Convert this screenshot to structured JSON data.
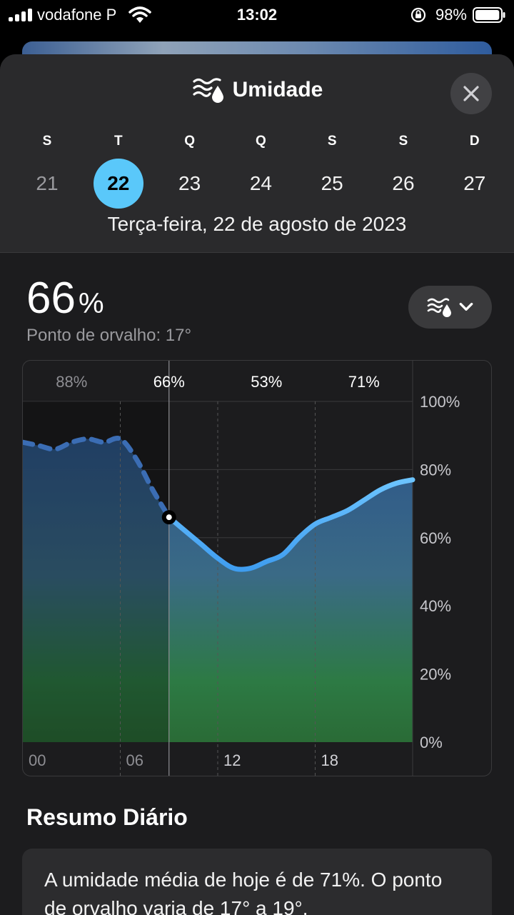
{
  "status_bar": {
    "carrier": "vodafone P",
    "time": "13:02",
    "battery": "98%",
    "battery_fraction": 0.98
  },
  "header": {
    "title": "Umidade",
    "icon": "humidity-icon",
    "close_icon": "close-icon"
  },
  "week": {
    "days": [
      {
        "weekday": "S",
        "date": "21"
      },
      {
        "weekday": "T",
        "date": "22"
      },
      {
        "weekday": "Q",
        "date": "23"
      },
      {
        "weekday": "Q",
        "date": "24"
      },
      {
        "weekday": "S",
        "date": "25"
      },
      {
        "weekday": "S",
        "date": "26"
      },
      {
        "weekday": "D",
        "date": "27"
      }
    ],
    "selected_index": 1,
    "full_date": "Terça-feira, 22 de agosto de 2023"
  },
  "current": {
    "value": "66",
    "unit": "%",
    "dew_point": "Ponto de orvalho: 17°"
  },
  "chart_data": {
    "type": "area",
    "x_ticks": [
      "00",
      "06",
      "12",
      "18"
    ],
    "y_ticks": [
      "100%",
      "80%",
      "60%",
      "40%",
      "20%",
      "0%"
    ],
    "ylim": [
      0,
      100
    ],
    "xlim": [
      0,
      24
    ],
    "top_labels": [
      {
        "hour": 3,
        "label": "88%"
      },
      {
        "hour": 9,
        "label": "66%"
      },
      {
        "hour": 15,
        "label": "53%"
      },
      {
        "hour": 21,
        "label": "71%"
      }
    ],
    "current_hour": 9,
    "x": [
      0,
      1,
      2,
      3,
      4,
      5,
      6,
      7,
      8,
      9,
      10,
      11,
      12,
      13,
      14,
      15,
      16,
      17,
      18,
      19,
      20,
      21,
      22,
      23,
      24
    ],
    "values": [
      88,
      87,
      86,
      88,
      89,
      88,
      89,
      83,
      74,
      66,
      62,
      58,
      54,
      51,
      51,
      53,
      55,
      60,
      64,
      66,
      68,
      71,
      74,
      76,
      77
    ],
    "past_style": "dashed",
    "grid": true
  },
  "summary": {
    "title": "Resumo Diário",
    "text": "A umidade média de hoje é de 71%. O ponto de orvalho varia de 17° a 19°."
  }
}
